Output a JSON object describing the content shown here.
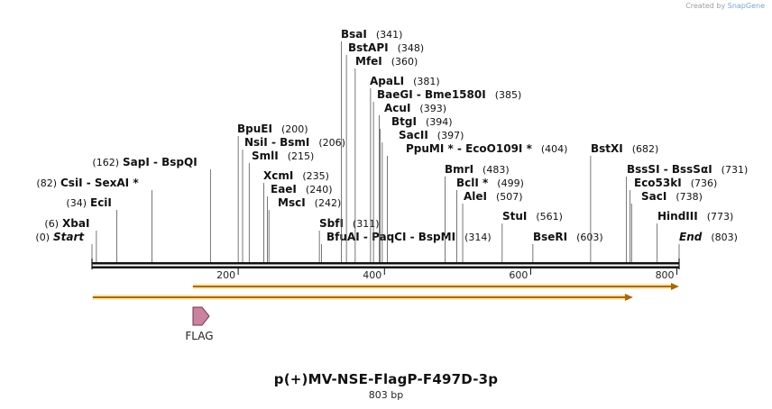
{
  "credit": {
    "prefix": "Created by",
    "brand": "SnapGene"
  },
  "plasmid": {
    "name": "p(+)MV-NSE-FlagP-F497D-3p",
    "length_label": "803 bp",
    "length": 803
  },
  "ruler": {
    "ticks": [
      200,
      400,
      600,
      800
    ]
  },
  "features": [
    {
      "label": "FLAG",
      "start": 140,
      "end": 162
    }
  ],
  "orf_arrows": [
    {
      "start": 138,
      "end": 803
    },
    {
      "start": 1,
      "end": 740
    }
  ],
  "sites": [
    {
      "label": "Start",
      "pos": 0,
      "pos_label": "(0)",
      "italic": true
    },
    {
      "label": "XbaI",
      "pos": 6,
      "pos_label": "(6)"
    },
    {
      "label": "EciI",
      "pos": 34,
      "pos_label": "(34)"
    },
    {
      "label": "CsiI - SexAI *",
      "pos": 82,
      "pos_label": "(82)"
    },
    {
      "label": "SapI - BspQI",
      "pos": 162,
      "pos_label": "(162)"
    },
    {
      "label": "BpuEI",
      "pos": 200,
      "pos_label": "(200)"
    },
    {
      "label": "NsiI - BsmI",
      "pos": 206,
      "pos_label": "(206)"
    },
    {
      "label": "SmlI",
      "pos": 215,
      "pos_label": "(215)"
    },
    {
      "label": "XcmI",
      "pos": 235,
      "pos_label": "(235)"
    },
    {
      "label": "EaeI",
      "pos": 240,
      "pos_label": "(240)"
    },
    {
      "label": "MscI",
      "pos": 242,
      "pos_label": "(242)"
    },
    {
      "label": "SbfI",
      "pos": 311,
      "pos_label": "(311)"
    },
    {
      "label": "BfuAI - PaqCI - BspMI",
      "pos": 314,
      "pos_label": "(314)"
    },
    {
      "label": "BsaI",
      "pos": 341,
      "pos_label": "(341)"
    },
    {
      "label": "BstAPI",
      "pos": 348,
      "pos_label": "(348)"
    },
    {
      "label": "MfeI",
      "pos": 360,
      "pos_label": "(360)"
    },
    {
      "label": "ApaLI",
      "pos": 381,
      "pos_label": "(381)"
    },
    {
      "label": "BaeGI - Bme1580I",
      "pos": 385,
      "pos_label": "(385)"
    },
    {
      "label": "AcuI",
      "pos": 393,
      "pos_label": "(393)"
    },
    {
      "label": "BtgI",
      "pos": 394,
      "pos_label": "(394)"
    },
    {
      "label": "SacII",
      "pos": 397,
      "pos_label": "(397)"
    },
    {
      "label": "PpuMI * - EcoO109I *",
      "pos": 404,
      "pos_label": "(404)"
    },
    {
      "label": "BmrI",
      "pos": 483,
      "pos_label": "(483)"
    },
    {
      "label": "BclI *",
      "pos": 499,
      "pos_label": "(499)"
    },
    {
      "label": "AleI",
      "pos": 507,
      "pos_label": "(507)"
    },
    {
      "label": "StuI",
      "pos": 561,
      "pos_label": "(561)"
    },
    {
      "label": "BseRI",
      "pos": 603,
      "pos_label": "(603)"
    },
    {
      "label": "BstXI",
      "pos": 682,
      "pos_label": "(682)"
    },
    {
      "label": "BssSI - BssSαI",
      "pos": 731,
      "pos_label": "(731)"
    },
    {
      "label": "Eco53kI",
      "pos": 736,
      "pos_label": "(736)"
    },
    {
      "label": "SacI",
      "pos": 738,
      "pos_label": "(738)"
    },
    {
      "label": "HindIII",
      "pos": 773,
      "pos_label": "(773)"
    },
    {
      "label": "End",
      "pos": 803,
      "pos_label": "(803)",
      "italic": true
    }
  ]
}
